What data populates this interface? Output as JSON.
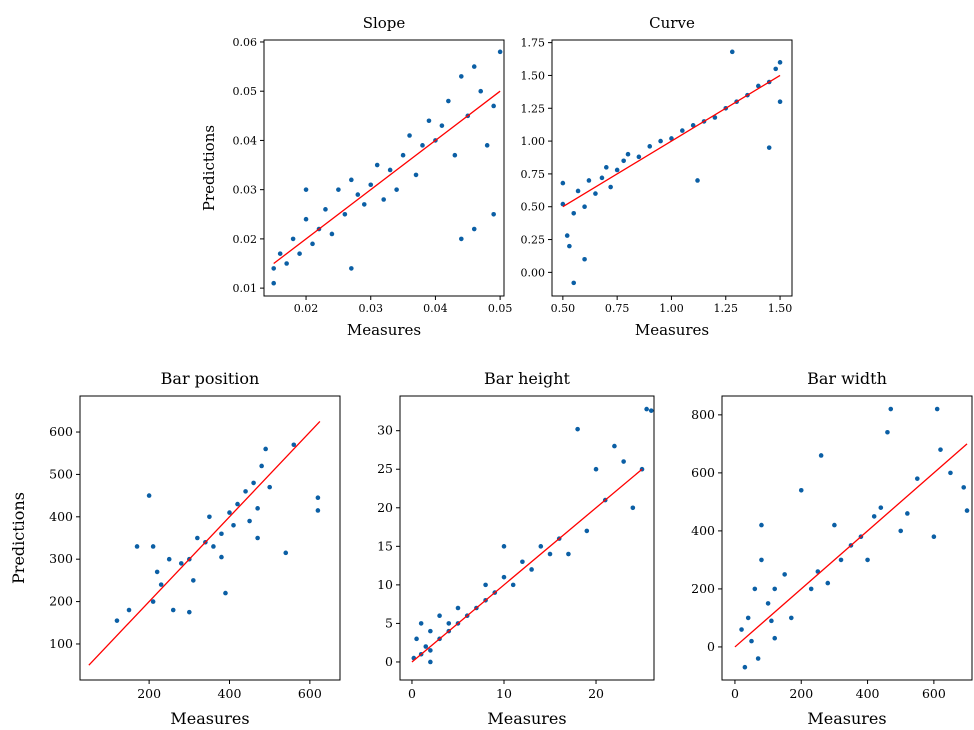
{
  "chart_data": [
    {
      "type": "scatter",
      "title": "Slope",
      "x_label": "Measures",
      "y_label": "Predictions",
      "xlim": [
        0.0135,
        0.0506
      ],
      "ylim": [
        0.0084,
        0.0604
      ],
      "xticks": [
        0.02,
        0.03,
        0.04,
        0.05
      ],
      "yticks": [
        0.01,
        0.02,
        0.03,
        0.04,
        0.05,
        0.06
      ],
      "color": "#0b5fa5",
      "x": [
        0.015,
        0.016,
        0.017,
        0.018,
        0.019,
        0.02,
        0.021,
        0.022,
        0.023,
        0.024,
        0.025,
        0.026,
        0.027,
        0.028,
        0.029,
        0.03,
        0.031,
        0.032,
        0.033,
        0.034,
        0.035,
        0.036,
        0.037,
        0.038,
        0.039,
        0.04,
        0.041,
        0.042,
        0.043,
        0.044,
        0.045,
        0.046,
        0.047,
        0.048,
        0.049,
        0.05,
        0.02,
        0.027,
        0.044,
        0.049,
        0.015,
        0.046
      ],
      "values": [
        0.011,
        0.017,
        0.015,
        0.02,
        0.017,
        0.024,
        0.019,
        0.022,
        0.026,
        0.021,
        0.03,
        0.025,
        0.014,
        0.029,
        0.027,
        0.031,
        0.035,
        0.028,
        0.034,
        0.03,
        0.037,
        0.041,
        0.033,
        0.039,
        0.044,
        0.04,
        0.043,
        0.048,
        0.037,
        0.053,
        0.045,
        0.055,
        0.05,
        0.039,
        0.047,
        0.058,
        0.03,
        0.032,
        0.02,
        0.025,
        0.014,
        0.022
      ],
      "reference_line": {
        "x": [
          0.015,
          0.05
        ],
        "values": [
          0.015,
          0.05
        ],
        "color": "#ff0000"
      }
    },
    {
      "type": "scatter",
      "title": "Curve",
      "x_label": "Measures",
      "xlim": [
        0.45,
        1.555
      ],
      "ylim": [
        -0.18,
        1.77
      ],
      "xticks": [
        {
          "value": 0.5,
          "label": "0.50"
        },
        {
          "value": 0.75,
          "label": "0.75"
        },
        {
          "value": 1,
          "label": "1.00"
        },
        {
          "value": 1.25,
          "label": "1.25"
        },
        {
          "value": 1.5,
          "label": "1.50"
        }
      ],
      "yticks": [
        {
          "value": 0,
          "label": "0.00"
        },
        {
          "value": 0.25,
          "label": "0.25"
        },
        {
          "value": 0.5,
          "label": "0.50"
        },
        {
          "value": 0.75,
          "label": "0.75"
        },
        {
          "value": 1,
          "label": "1.00"
        },
        {
          "value": 1.25,
          "label": "1.25"
        },
        {
          "value": 1.5,
          "label": "1.50"
        },
        {
          "value": 1.75,
          "label": "1.75"
        }
      ],
      "color": "#0b5fa5",
      "x": [
        0.5,
        0.52,
        0.55,
        0.57,
        0.6,
        0.62,
        0.65,
        0.68,
        0.7,
        0.72,
        0.75,
        0.78,
        0.8,
        0.85,
        0.9,
        0.95,
        1.0,
        1.05,
        1.1,
        1.15,
        1.2,
        1.25,
        1.28,
        1.3,
        1.35,
        1.4,
        1.45,
        1.48,
        1.5,
        0.55,
        0.6,
        0.5,
        1.12,
        1.45,
        1.5,
        0.53
      ],
      "values": [
        0.52,
        0.28,
        -0.08,
        0.62,
        0.1,
        0.7,
        0.6,
        0.72,
        0.8,
        0.65,
        0.78,
        0.85,
        0.9,
        0.88,
        0.96,
        1.0,
        1.02,
        1.08,
        1.12,
        1.15,
        1.18,
        1.25,
        1.68,
        1.3,
        1.35,
        1.42,
        1.45,
        1.55,
        1.6,
        0.45,
        0.5,
        0.68,
        0.7,
        0.95,
        1.3,
        0.2
      ],
      "reference_line": {
        "x": [
          0.5,
          1.5
        ],
        "values": [
          0.5,
          1.5
        ],
        "color": "#ff0000"
      }
    },
    {
      "type": "scatter",
      "title": "Bar position",
      "x_label": "Measures",
      "y_label": "Predictions",
      "xlim": [
        28,
        675
      ],
      "ylim": [
        15,
        685
      ],
      "xticks": [
        200,
        400,
        600
      ],
      "yticks": [
        100,
        200,
        300,
        400,
        500,
        600
      ],
      "color": "#0b5fa5",
      "x": [
        120,
        150,
        170,
        200,
        210,
        220,
        230,
        250,
        260,
        280,
        300,
        310,
        320,
        340,
        350,
        360,
        380,
        390,
        400,
        410,
        420,
        440,
        450,
        460,
        470,
        480,
        490,
        500,
        540,
        560,
        620,
        620,
        300,
        210,
        380,
        470
      ],
      "values": [
        155,
        180,
        330,
        450,
        200,
        270,
        240,
        300,
        180,
        290,
        300,
        250,
        350,
        340,
        400,
        330,
        360,
        220,
        410,
        380,
        430,
        460,
        390,
        480,
        420,
        520,
        560,
        470,
        315,
        570,
        415,
        445,
        175,
        330,
        305,
        350
      ],
      "reference_line": {
        "x": [
          50,
          625
        ],
        "values": [
          50,
          625
        ],
        "color": "#ff0000"
      }
    },
    {
      "type": "scatter",
      "title": "Bar height",
      "x_label": "Measures",
      "xlim": [
        -1.3,
        26.3
      ],
      "ylim": [
        -2.34,
        34.5
      ],
      "xticks": [
        0,
        10,
        20
      ],
      "yticks": [
        0,
        5,
        10,
        15,
        20,
        25,
        30
      ],
      "color": "#0b5fa5",
      "x": [
        0.2,
        0.5,
        1,
        1,
        1.5,
        2,
        2,
        3,
        3,
        4,
        4,
        5,
        5,
        6,
        7,
        8,
        8,
        9,
        10,
        11,
        12,
        13,
        14,
        15,
        16,
        17,
        18,
        19,
        20,
        21,
        22,
        23,
        24,
        25,
        25.5,
        26,
        2,
        10
      ],
      "values": [
        0.5,
        3,
        1,
        5,
        2,
        1.5,
        4,
        3,
        6,
        4,
        5,
        5,
        7,
        6,
        7,
        8,
        10,
        9,
        11,
        10,
        13,
        12,
        15,
        14,
        16,
        14,
        30.2,
        17,
        25,
        21,
        28,
        26,
        20,
        25,
        32.8,
        32.6,
        0,
        15
      ],
      "reference_line": {
        "x": [
          0,
          25
        ],
        "values": [
          0,
          25
        ],
        "color": "#ff0000"
      }
    },
    {
      "type": "scatter",
      "title": "Bar width",
      "x_label": "Measures",
      "xlim": [
        -39,
        715
      ],
      "ylim": [
        -114,
        865
      ],
      "xticks": [
        0,
        200,
        400,
        600
      ],
      "yticks": [
        0,
        200,
        400,
        600,
        800
      ],
      "color": "#0b5fa5",
      "x": [
        20,
        30,
        40,
        50,
        60,
        70,
        80,
        100,
        110,
        120,
        150,
        170,
        200,
        230,
        250,
        260,
        280,
        300,
        320,
        350,
        380,
        400,
        420,
        440,
        460,
        470,
        500,
        520,
        550,
        600,
        610,
        620,
        650,
        690,
        700,
        80,
        120
      ],
      "values": [
        60,
        -70,
        100,
        20,
        200,
        -40,
        300,
        150,
        90,
        200,
        250,
        100,
        540,
        200,
        260,
        660,
        220,
        420,
        300,
        350,
        380,
        300,
        450,
        480,
        740,
        820,
        400,
        460,
        580,
        380,
        820,
        680,
        600,
        550,
        470,
        420,
        30
      ],
      "reference_line": {
        "x": [
          0,
          700
        ],
        "values": [
          0,
          700
        ],
        "color": "#ff0000"
      }
    }
  ]
}
